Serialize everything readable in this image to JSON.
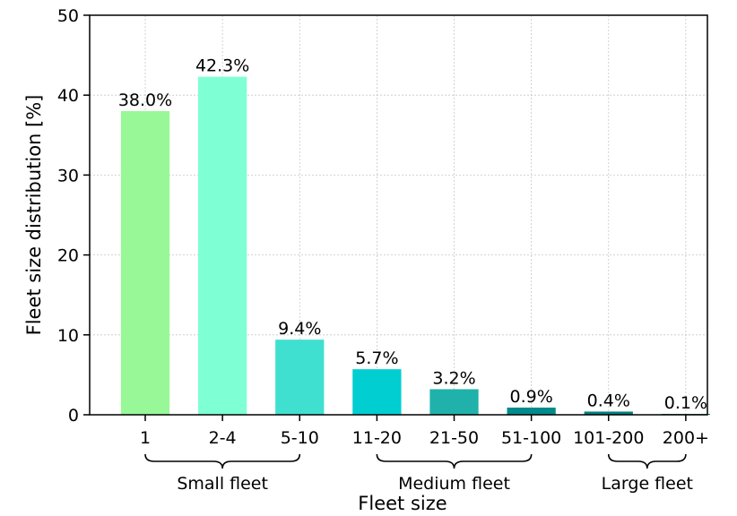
{
  "chart_data": {
    "type": "bar",
    "categories": [
      "1",
      "2-4",
      "5-10",
      "11-20",
      "21-50",
      "51-100",
      "101-200",
      "200+"
    ],
    "values": [
      38.0,
      42.3,
      9.4,
      5.7,
      3.2,
      0.9,
      0.4,
      0.1
    ],
    "data_labels": [
      "38.0%",
      "42.3%",
      "9.4%",
      "5.7%",
      "3.2%",
      "0.9%",
      "0.4%",
      "0.1%"
    ],
    "colors": [
      "#98f898",
      "#7fffd4",
      "#40e0d0",
      "#00ced1",
      "#20b2aa",
      "#008b8b",
      "#008080",
      "#006060"
    ],
    "xlabel": "Fleet size",
    "ylabel": "Fleet size distribution [%]",
    "ylim": [
      0,
      50
    ],
    "yticks": [
      "0",
      "10",
      "20",
      "30",
      "40",
      "50"
    ],
    "grid": true,
    "groups": [
      {
        "label": "Small fleet",
        "from": 0,
        "to": 2
      },
      {
        "label": "Medium fleet",
        "from": 3,
        "to": 5
      },
      {
        "label": "Large fleet",
        "from": 6,
        "to": 7
      }
    ]
  }
}
